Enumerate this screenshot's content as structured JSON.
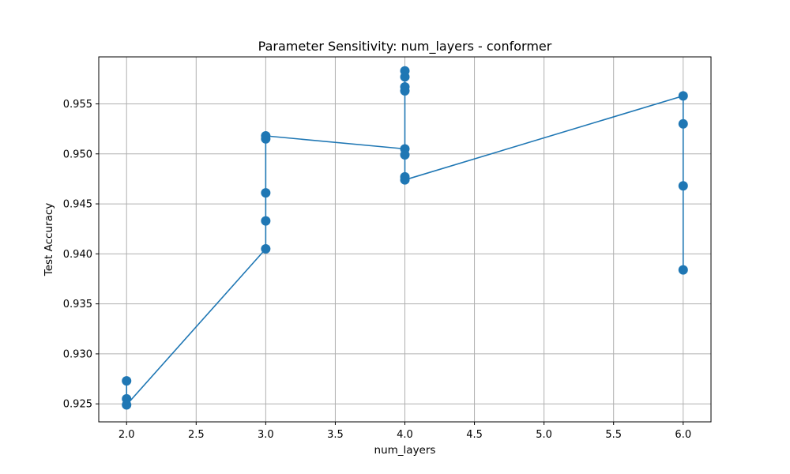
{
  "chart_data": {
    "type": "line",
    "title": "Parameter Sensitivity: num_layers - conformer",
    "xlabel": "num_layers",
    "ylabel": "Test Accuracy",
    "xlim": [
      1.8,
      6.2
    ],
    "ylim": [
      0.9232,
      0.9597
    ],
    "xticks": [
      2.0,
      2.5,
      3.0,
      3.5,
      4.0,
      4.5,
      5.0,
      5.5,
      6.0
    ],
    "xtick_labels": [
      "2.0",
      "2.5",
      "3.0",
      "3.5",
      "4.0",
      "4.5",
      "5.0",
      "5.5",
      "6.0"
    ],
    "yticks": [
      0.925,
      0.93,
      0.935,
      0.94,
      0.945,
      0.95,
      0.955
    ],
    "ytick_labels": [
      "0.925",
      "0.930",
      "0.935",
      "0.940",
      "0.945",
      "0.950",
      "0.955"
    ],
    "grid": true,
    "color": "#1f77b4",
    "marker": "circle",
    "series": [
      {
        "x": [
          2,
          2,
          2,
          3,
          3,
          3,
          3,
          3,
          4,
          4,
          4,
          4,
          4,
          4,
          4,
          4,
          6,
          6,
          6,
          6
        ],
        "y": [
          0.9273,
          0.9255,
          0.9249,
          0.9405,
          0.9433,
          0.9461,
          0.9515,
          0.9518,
          0.9505,
          0.9499,
          0.9563,
          0.9567,
          0.9577,
          0.9583,
          0.9477,
          0.9474,
          0.9558,
          0.953,
          0.9468,
          0.9384
        ]
      }
    ]
  }
}
